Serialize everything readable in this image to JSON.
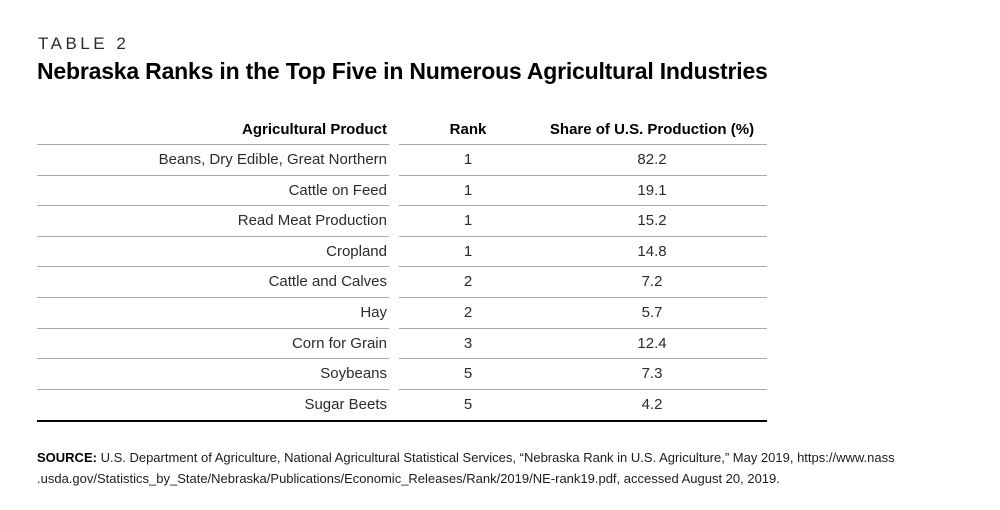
{
  "table_label": "TABLE 2",
  "title": "Nebraska Ranks in the Top Five in Numerous Agricultural Industries",
  "table": {
    "columns": [
      "Agricultural Product",
      "Rank",
      "Share of U.S. Production (%)"
    ],
    "rows": [
      {
        "product": "Beans, Dry Edible, Great Northern",
        "rank": "1",
        "share": "82.2"
      },
      {
        "product": "Cattle on Feed",
        "rank": "1",
        "share": "19.1"
      },
      {
        "product": "Read Meat Production",
        "rank": "1",
        "share": "15.2"
      },
      {
        "product": "Cropland",
        "rank": "1",
        "share": "14.8"
      },
      {
        "product": "Cattle and Calves",
        "rank": "2",
        "share": "7.2"
      },
      {
        "product": "Hay",
        "rank": "2",
        "share": "5.7"
      },
      {
        "product": "Corn for Grain",
        "rank": "3",
        "share": "12.4"
      },
      {
        "product": "Soybeans",
        "rank": "5",
        "share": "7.3"
      },
      {
        "product": "Sugar Beets",
        "rank": "5",
        "share": "4.2"
      }
    ]
  },
  "source": {
    "label": "SOURCE:",
    "line1": " U.S. Department of Agriculture, National Agricultural Statistical Services, “Nebraska Rank in U.S. Agriculture,” May 2019, https://www.nass",
    "line2": ".usda.gov/Statistics_by_State/Nebraska/Publications/Economic_Releases/Rank/2019/NE-rank19.pdf, accessed August 20, 2019."
  },
  "colors": {
    "rule": "#a9a9a9",
    "thick_rule": "#000000",
    "title_text": "#000000",
    "body_text": "#2b2b2b"
  }
}
